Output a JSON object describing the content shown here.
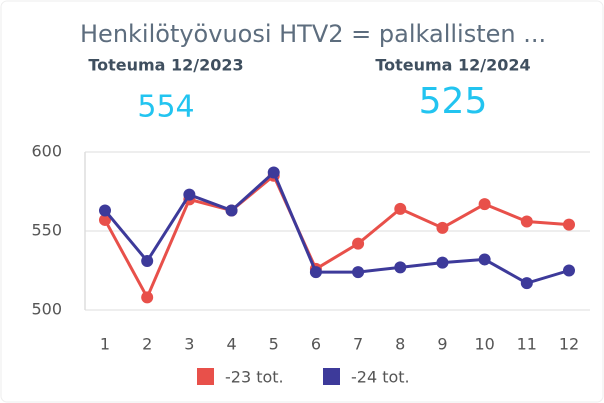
{
  "title": "Henkilötyövuosi HTV2 = palkallisten ...",
  "kpis": [
    {
      "label": "Toteuma 12/2023",
      "value": 554
    },
    {
      "label": "Toteuma 12/2024",
      "value": 525
    }
  ],
  "chart_data": {
    "type": "line",
    "categories": [
      "1",
      "2",
      "3",
      "4",
      "5",
      "6",
      "7",
      "8",
      "9",
      "10",
      "11",
      "12"
    ],
    "series": [
      {
        "name": "-23 tot.",
        "color": "#e8504a",
        "values": [
          557,
          508,
          570,
          563,
          585,
          526,
          542,
          564,
          552,
          567,
          556,
          554
        ]
      },
      {
        "name": "-24 tot.",
        "color": "#3d3a9a",
        "values": [
          563,
          531,
          573,
          563,
          587,
          524,
          524,
          527,
          530,
          532,
          517,
          525
        ]
      }
    ],
    "ylim": [
      500,
      600
    ],
    "yticks": [
      500,
      550,
      600
    ],
    "grid": true,
    "legend": "bottom"
  }
}
